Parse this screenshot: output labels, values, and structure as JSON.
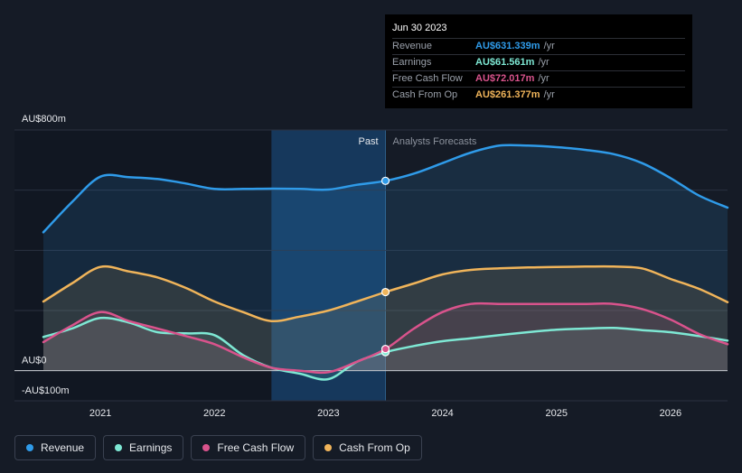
{
  "tooltip": {
    "date": "Jun 30 2023",
    "rows": [
      {
        "label": "Revenue",
        "value": "AU$631.339m",
        "unit": "/yr",
        "color": "#2f9be9"
      },
      {
        "label": "Earnings",
        "value": "AU$61.561m",
        "unit": "/yr",
        "color": "#7ee8d4"
      },
      {
        "label": "Free Cash Flow",
        "value": "AU$72.017m",
        "unit": "/yr",
        "color": "#d9538c"
      },
      {
        "label": "Cash From Op",
        "value": "AU$261.377m",
        "unit": "/yr",
        "color": "#f0b45a"
      }
    ]
  },
  "legend": [
    {
      "label": "Revenue",
      "color": "#2f9be9"
    },
    {
      "label": "Earnings",
      "color": "#7ee8d4"
    },
    {
      "label": "Free Cash Flow",
      "color": "#d9538c"
    },
    {
      "label": "Cash From Op",
      "color": "#f0b45a"
    }
  ],
  "chart_data": {
    "type": "area",
    "y_tick_labels": [
      "AU$800m",
      "AU$0",
      "-AU$100m"
    ],
    "ylim": [
      -100,
      800
    ],
    "xlim": [
      2020.5,
      2026.5
    ],
    "x_ticks": [
      2021,
      2022,
      2023,
      2024,
      2025,
      2026
    ],
    "x_tick_labels": [
      "2021",
      "2022",
      "2023",
      "2024",
      "2025",
      "2026"
    ],
    "past_label": "Past",
    "forecast_label": "Analysts Forecasts",
    "past_end": 2023.5,
    "highlight_start": 2022.5,
    "grid": true,
    "legend_position": "bottom-left",
    "series": [
      {
        "name": "Revenue",
        "color": "#2f9be9",
        "x": [
          2020.5,
          2020.75,
          2021.0,
          2021.25,
          2021.5,
          2021.75,
          2022.0,
          2022.25,
          2022.5,
          2022.75,
          2023.0,
          2023.25,
          2023.5,
          2023.75,
          2024.0,
          2024.25,
          2024.5,
          2024.75,
          2025.0,
          2025.25,
          2025.5,
          2025.75,
          2026.0,
          2026.25,
          2026.5
        ],
        "values": [
          460,
          560,
          645,
          643,
          637,
          622,
          604,
          604,
          605,
          604,
          602,
          618,
          631,
          655,
          690,
          725,
          748,
          748,
          743,
          734,
          720,
          690,
          640,
          582,
          542
        ]
      },
      {
        "name": "Earnings",
        "color": "#7ee8d4",
        "x": [
          2020.5,
          2020.75,
          2021.0,
          2021.25,
          2021.5,
          2021.75,
          2022.0,
          2022.25,
          2022.5,
          2022.75,
          2023.0,
          2023.25,
          2023.5,
          2023.75,
          2024.0,
          2024.25,
          2024.5,
          2024.75,
          2025.0,
          2025.25,
          2025.5,
          2025.75,
          2026.0,
          2026.25,
          2026.5
        ],
        "values": [
          112,
          140,
          175,
          160,
          128,
          124,
          118,
          52,
          10,
          -10,
          -28,
          30,
          61.561,
          82,
          98,
          108,
          118,
          128,
          136,
          140,
          142,
          135,
          128,
          115,
          100
        ]
      },
      {
        "name": "Free Cash Flow",
        "color": "#d9538c",
        "x": [
          2020.5,
          2020.75,
          2021.0,
          2021.25,
          2021.5,
          2021.75,
          2022.0,
          2022.25,
          2022.5,
          2022.75,
          2023.0,
          2023.25,
          2023.5,
          2023.75,
          2024.0,
          2024.25,
          2024.5,
          2024.75,
          2025.0,
          2025.25,
          2025.5,
          2025.75,
          2026.0,
          2026.25,
          2026.5
        ],
        "values": [
          95,
          150,
          195,
          165,
          140,
          115,
          88,
          45,
          10,
          0,
          -5,
          30,
          72.017,
          140,
          195,
          222,
          222,
          222,
          222,
          222,
          222,
          205,
          170,
          122,
          88
        ]
      },
      {
        "name": "Cash From Op",
        "color": "#f0b45a",
        "x": [
          2020.5,
          2020.75,
          2021.0,
          2021.25,
          2021.5,
          2021.75,
          2022.0,
          2022.25,
          2022.5,
          2022.75,
          2023.0,
          2023.25,
          2023.5,
          2023.75,
          2024.0,
          2024.25,
          2024.5,
          2024.75,
          2025.0,
          2025.25,
          2025.5,
          2025.75,
          2026.0,
          2026.25,
          2026.5
        ],
        "values": [
          230,
          290,
          345,
          330,
          310,
          275,
          230,
          195,
          165,
          180,
          200,
          230,
          261.377,
          290,
          320,
          335,
          340,
          343,
          345,
          346,
          346,
          340,
          305,
          272,
          228
        ]
      }
    ]
  }
}
